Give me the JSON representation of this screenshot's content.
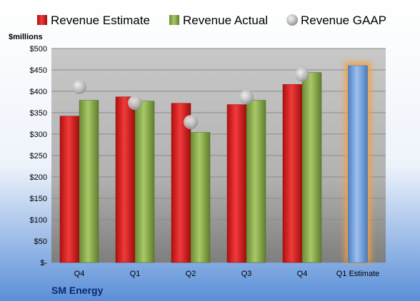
{
  "chart_data": {
    "type": "bar",
    "ylabel": "$millions",
    "company": "SM Energy",
    "ylim": [
      0,
      500
    ],
    "yticks": [
      0,
      50,
      100,
      150,
      200,
      250,
      300,
      350,
      400,
      450,
      500
    ],
    "ytick_labels": [
      "$-",
      "$50",
      "$100",
      "$150",
      "$200",
      "$250",
      "$300",
      "$350",
      "$400",
      "$450",
      "$500"
    ],
    "categories": [
      "Q4",
      "Q1",
      "Q2",
      "Q3",
      "Q4",
      "Q1 Estimate"
    ],
    "legend_position": "top",
    "grid": true,
    "series": [
      {
        "name": "Revenue Estimate",
        "kind": "bar",
        "color": "#e02020",
        "values": [
          342,
          387,
          372,
          369,
          416,
          null
        ]
      },
      {
        "name": "Revenue Actual",
        "kind": "bar",
        "color": "#8db04a",
        "values": [
          379,
          377,
          304,
          379,
          444,
          null
        ]
      },
      {
        "name": "Revenue GAAP",
        "kind": "marker",
        "color": "#b8b8b8",
        "values": [
          410,
          373,
          328,
          386,
          439,
          null
        ]
      },
      {
        "name": "Q1 Estimate",
        "kind": "bar",
        "color": "#6fa0dc",
        "highlight": "#f5a040",
        "values": [
          null,
          null,
          null,
          null,
          null,
          460
        ]
      }
    ]
  }
}
